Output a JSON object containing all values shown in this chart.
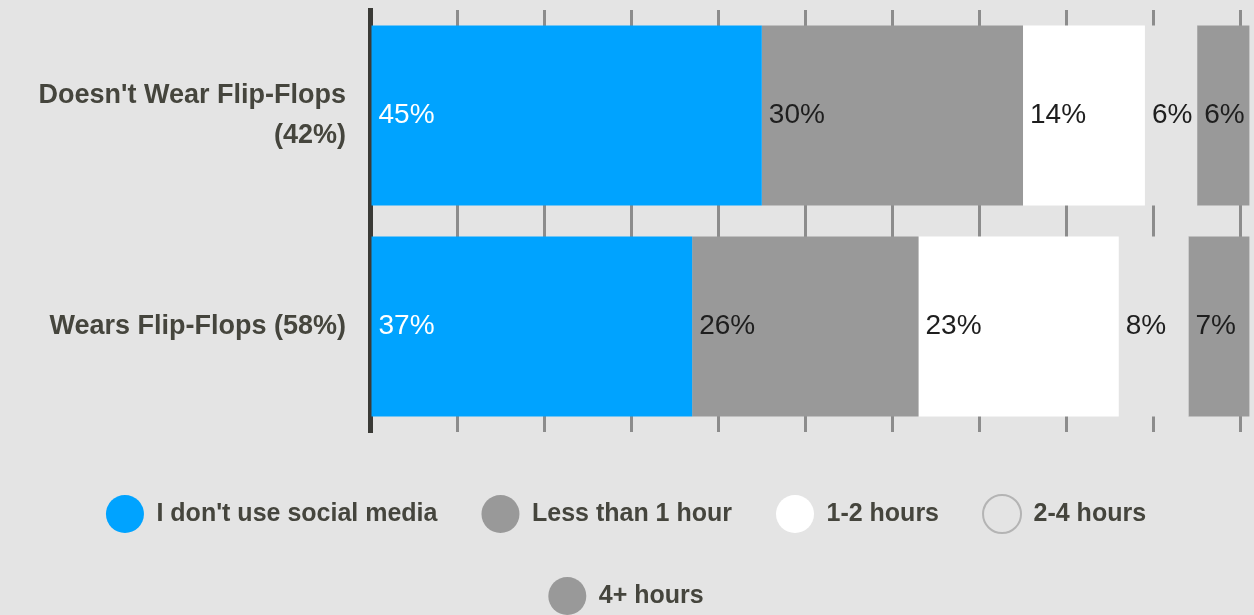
{
  "chart_data": {
    "type": "bar",
    "orientation": "horizontal",
    "stacked": true,
    "categories": [
      "Doesn't Wear Flip-Flops (42%)",
      "Wears Flip-Flops (58%)"
    ],
    "series": [
      {
        "name": "I don't use social media",
        "color": "#00a3ff",
        "values": [
          45,
          37
        ],
        "value_labels": [
          "45%",
          "37%"
        ]
      },
      {
        "name": "Less than 1 hour",
        "color": "#999999",
        "values": [
          30,
          26
        ],
        "value_labels": [
          "30%",
          "26%"
        ]
      },
      {
        "name": "1-2 hours",
        "color": "#ffffff",
        "values": [
          14,
          23
        ],
        "value_labels": [
          "14%",
          "23%"
        ]
      },
      {
        "name": "2-4 hours",
        "color": "#e4e4e4",
        "values": [
          6,
          8
        ],
        "value_labels": [
          "6%",
          "8%"
        ]
      },
      {
        "name": "4+ hours",
        "color": "#999999",
        "values": [
          6,
          7
        ],
        "value_labels": [
          "6%",
          "7%"
        ]
      }
    ],
    "xlim": [
      0,
      101.3
    ],
    "xticks": [
      {
        "value": 0,
        "label": null
      },
      {
        "value": 10,
        "label": null
      },
      {
        "value": 20,
        "label": null
      },
      {
        "value": 30,
        "label": null
      },
      {
        "value": 40,
        "label": null
      },
      {
        "value": 50,
        "label": null
      },
      {
        "value": 60,
        "label": null
      },
      {
        "value": 70,
        "label": null
      },
      {
        "value": 80,
        "label": null
      },
      {
        "value": 90,
        "label": null
      },
      {
        "value": 100,
        "label": null
      }
    ],
    "grid": "x",
    "legend": "bottom",
    "tick_labels": "y"
  }
}
